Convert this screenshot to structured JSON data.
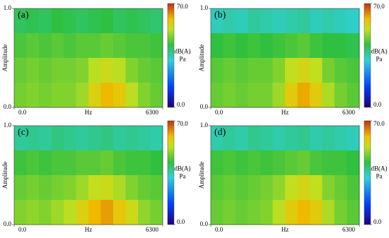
{
  "chart_data": [
    {
      "type": "heatmap",
      "label": "(a)",
      "ylabel": "Amplitude",
      "xlabel": "Hz",
      "xlim": [
        0,
        6300
      ],
      "xticks": [
        {
          "value": 0,
          "label": "0.0"
        },
        6300
      ],
      "ylim": [
        0,
        1
      ],
      "yticks": [
        {
          "value": 0,
          "label": "0.0"
        },
        {
          "value": 1,
          "label": "1.0"
        }
      ],
      "zlim": [
        0,
        70
      ],
      "zticks": [
        {
          "value": 0,
          "label": "0.0"
        },
        {
          "value": 70,
          "label": "70.0"
        }
      ],
      "colorbar_label": "dB(A)",
      "colorbar_unit": "Pa",
      "z": [
        [
          40,
          41,
          40,
          42,
          41,
          40,
          41,
          42,
          40,
          41,
          40,
          39
        ],
        [
          44,
          45,
          44,
          45,
          44,
          45,
          45,
          46,
          45,
          44,
          44,
          43
        ],
        [
          46,
          47,
          46,
          47,
          47,
          48,
          52,
          54,
          52,
          48,
          46,
          45
        ],
        [
          47,
          48,
          47,
          48,
          48,
          50,
          56,
          60,
          58,
          52,
          48,
          46
        ]
      ]
    },
    {
      "type": "heatmap",
      "label": "(b)",
      "ylabel": "Amplitude",
      "xlabel": "Hz",
      "xlim": [
        0,
        6300
      ],
      "xticks": [
        {
          "value": 0,
          "label": "0.0"
        },
        6300
      ],
      "ylim": [
        0,
        1
      ],
      "yticks": [
        {
          "value": 0,
          "label": "0.0"
        },
        {
          "value": 1,
          "label": "1.0"
        }
      ],
      "zlim": [
        0,
        70
      ],
      "zticks": [
        {
          "value": 0,
          "label": "0.0"
        },
        {
          "value": 70,
          "label": "70.0"
        }
      ],
      "colorbar_label": "dB(A)",
      "colorbar_unit": "Pa",
      "z": [
        [
          34,
          35,
          34,
          36,
          35,
          34,
          35,
          36,
          34,
          35,
          34,
          33
        ],
        [
          42,
          43,
          42,
          43,
          42,
          43,
          44,
          45,
          43,
          42,
          42,
          41
        ],
        [
          45,
          46,
          45,
          46,
          46,
          48,
          53,
          55,
          53,
          47,
          45,
          44
        ],
        [
          46,
          47,
          46,
          47,
          47,
          50,
          57,
          61,
          57,
          51,
          47,
          45
        ]
      ]
    },
    {
      "type": "heatmap",
      "label": "(c)",
      "ylabel": "Amplitude",
      "xlabel": "Hz",
      "xlim": [
        0,
        6300
      ],
      "xticks": [
        {
          "value": 0,
          "label": "0.0"
        },
        6300
      ],
      "ylim": [
        0,
        1
      ],
      "yticks": [
        {
          "value": 0,
          "label": "0.0"
        },
        {
          "value": 1,
          "label": "1.0"
        }
      ],
      "zlim": [
        0,
        70
      ],
      "zticks": [
        {
          "value": 0,
          "label": "0.0"
        },
        {
          "value": 70,
          "label": "70.0"
        }
      ],
      "colorbar_label": "dB(A)",
      "colorbar_unit": "Pa",
      "z": [
        [
          36,
          37,
          36,
          38,
          37,
          36,
          37,
          38,
          36,
          37,
          36,
          35
        ],
        [
          43,
          44,
          43,
          44,
          44,
          45,
          45,
          46,
          44,
          43,
          43,
          42
        ],
        [
          46,
          47,
          46,
          47,
          48,
          50,
          53,
          54,
          51,
          48,
          46,
          45
        ],
        [
          48,
          49,
          48,
          50,
          52,
          56,
          60,
          62,
          58,
          54,
          49,
          47
        ]
      ]
    },
    {
      "type": "heatmap",
      "label": "(d)",
      "ylabel": "Amplitude",
      "xlabel": "Hz",
      "xlim": [
        0,
        6300
      ],
      "xticks": [
        {
          "value": 0,
          "label": "0.0"
        },
        6300
      ],
      "ylim": [
        0,
        1
      ],
      "yticks": [
        {
          "value": 0,
          "label": "0.0"
        },
        {
          "value": 1,
          "label": "1.0"
        }
      ],
      "zlim": [
        0,
        70
      ],
      "zticks": [
        {
          "value": 0,
          "label": "0.0"
        },
        {
          "value": 70,
          "label": "70.0"
        }
      ],
      "colorbar_label": "dB(A)",
      "colorbar_unit": "Pa",
      "z": [
        [
          35,
          36,
          35,
          37,
          36,
          35,
          36,
          37,
          35,
          36,
          35,
          34
        ],
        [
          43,
          44,
          43,
          44,
          43,
          44,
          45,
          46,
          44,
          43,
          43,
          42
        ],
        [
          45,
          46,
          45,
          46,
          47,
          49,
          53,
          55,
          53,
          48,
          46,
          44
        ],
        [
          46,
          47,
          46,
          47,
          48,
          52,
          57,
          60,
          57,
          51,
          47,
          45
        ]
      ]
    }
  ]
}
